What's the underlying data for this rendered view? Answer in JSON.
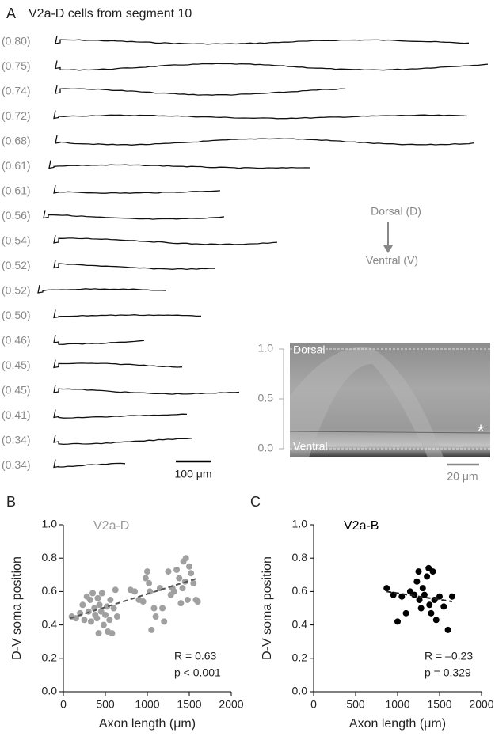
{
  "panel_a": {
    "label": "A",
    "title": "V2a-D cells from segment 10",
    "soma_positions": [
      "(0.80)",
      "(0.75)",
      "(0.74)",
      "(0.72)",
      "(0.68)",
      "(0.61)",
      "(0.61)",
      "(0.56)",
      "(0.54)",
      "(0.52)",
      "(0.52)",
      "(0.50)",
      "(0.46)",
      "(0.45)",
      "(0.45)",
      "(0.41)",
      "(0.34)",
      "(0.34)"
    ],
    "scale_bar": "100 μm",
    "dorsal_label": "Dorsal (D)",
    "ventral_label": "Ventral (V)",
    "inset": {
      "yticks": [
        {
          "value": 1,
          "label": "1.0"
        },
        0.5,
        {
          "value": 0,
          "label": "0.0"
        }
      ],
      "ylim": [
        0,
        1
      ],
      "dorsal": "Dorsal",
      "ventral": "Ventral",
      "asterisk": "*",
      "scale_bar": "20 μm"
    }
  },
  "chart_data": [
    {
      "type": "scatter",
      "label": "B",
      "title": "V2a-D",
      "title_color": "#999999",
      "xlabel": "Axon length (μm)",
      "ylabel": "D-V soma position",
      "xlim": [
        0,
        2000
      ],
      "ylim": [
        0,
        1
      ],
      "xticks": [
        0,
        500,
        1000,
        1500,
        2000
      ],
      "yticks": [
        {
          "value": 0,
          "label": "0.0"
        },
        0.2,
        0.4,
        0.6,
        0.8,
        {
          "value": 1,
          "label": "1.0"
        }
      ],
      "annotations": [
        "R = 0.63",
        "p < 0.001"
      ],
      "series": [
        {
          "color": "#a0a0a0",
          "x": [
            100,
            150,
            200,
            230,
            250,
            280,
            300,
            320,
            330,
            350,
            370,
            380,
            400,
            410,
            420,
            430,
            450,
            460,
            480,
            500,
            520,
            530,
            550,
            560,
            580,
            600,
            620,
            640,
            800,
            850,
            900,
            950,
            980,
            1000,
            1020,
            1030,
            1050,
            1080,
            1100,
            1150,
            1180,
            1200,
            1250,
            1280,
            1300,
            1320,
            1350,
            1380,
            1400,
            1420,
            1430,
            1450,
            1460,
            1480,
            1500,
            1520,
            1550,
            1580,
            1600
          ],
          "values": [
            0.45,
            0.44,
            0.47,
            0.52,
            0.43,
            0.57,
            0.48,
            0.55,
            0.42,
            0.59,
            0.5,
            0.46,
            0.44,
            0.56,
            0.35,
            0.52,
            0.48,
            0.59,
            0.4,
            0.46,
            0.51,
            0.36,
            0.43,
            0.55,
            0.35,
            0.5,
            0.61,
            0.45,
            0.61,
            0.6,
            0.55,
            0.54,
            0.68,
            0.72,
            0.65,
            0.6,
            0.37,
            0.5,
            0.45,
            0.62,
            0.5,
            0.42,
            0.72,
            0.58,
            0.62,
            0.6,
            0.73,
            0.68,
            0.53,
            0.62,
            0.78,
            0.66,
            0.8,
            0.55,
            0.75,
            0.71,
            0.65,
            0.55,
            0.54
          ]
        }
      ],
      "fit": {
        "color": "#555555",
        "x": [
          80,
          1600
        ],
        "values": [
          0.44,
          0.68
        ]
      }
    },
    {
      "type": "scatter",
      "label": "C",
      "title": "V2a-B",
      "title_color": "#000000",
      "xlabel": "Axon length (μm)",
      "ylabel": "D-V soma position",
      "xlim": [
        0,
        2000
      ],
      "ylim": [
        0,
        1
      ],
      "xticks": [
        0,
        500,
        1000,
        1500,
        2000
      ],
      "yticks": [
        {
          "value": 0,
          "label": "0.0"
        },
        0.2,
        0.4,
        0.6,
        0.8,
        {
          "value": 1,
          "label": "1.0"
        }
      ],
      "annotations": [
        "R = –0.23",
        "p = 0.329"
      ],
      "series": [
        {
          "color": "#000000",
          "x": [
            870,
            950,
            1000,
            1050,
            1100,
            1150,
            1200,
            1230,
            1250,
            1260,
            1280,
            1300,
            1320,
            1350,
            1370,
            1380,
            1400,
            1420,
            1440,
            1460,
            1500,
            1550,
            1600,
            1650
          ],
          "values": [
            0.62,
            0.58,
            0.42,
            0.57,
            0.47,
            0.6,
            0.58,
            0.66,
            0.72,
            0.55,
            0.5,
            0.62,
            0.58,
            0.69,
            0.74,
            0.52,
            0.47,
            0.72,
            0.55,
            0.43,
            0.57,
            0.51,
            0.37,
            0.57
          ]
        }
      ],
      "fit": {
        "color": "#222222",
        "x": [
          870,
          1650
        ],
        "values": [
          0.6,
          0.54
        ]
      }
    }
  ]
}
